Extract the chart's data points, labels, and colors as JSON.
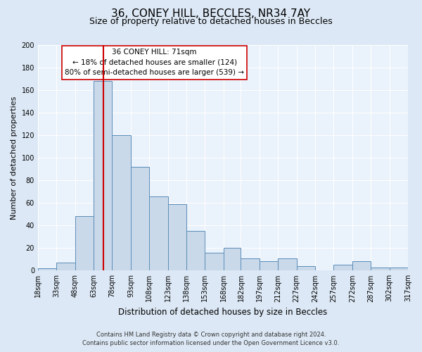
{
  "title_line1": "36, CONEY HILL, BECCLES, NR34 7AY",
  "title_line2": "Size of property relative to detached houses in Beccles",
  "xlabel": "Distribution of detached houses by size in Beccles",
  "ylabel": "Number of detached properties",
  "bin_edges": [
    18,
    33,
    48,
    63,
    78,
    93,
    108,
    123,
    138,
    153,
    168,
    182,
    197,
    212,
    227,
    242,
    257,
    272,
    287,
    302,
    317
  ],
  "bar_heights": [
    2,
    7,
    48,
    168,
    120,
    92,
    66,
    59,
    35,
    16,
    20,
    11,
    8,
    11,
    4,
    0,
    5,
    8,
    3,
    3
  ],
  "bar_color": "#c9d9ea",
  "bar_edge_color": "#5b8db8",
  "vline_x": 71,
  "vline_color": "#cc0000",
  "annotation_line1": "36 CONEY HILL: 71sqm",
  "annotation_line2": "← 18% of detached houses are smaller (124)",
  "annotation_line3": "80% of semi-detached houses are larger (539) →",
  "annotation_box_color": "#ffffff",
  "annotation_box_edge": "#cc0000",
  "ylim": [
    0,
    200
  ],
  "yticks": [
    0,
    20,
    40,
    60,
    80,
    100,
    120,
    140,
    160,
    180,
    200
  ],
  "tick_labels": [
    "18sqm",
    "33sqm",
    "48sqm",
    "63sqm",
    "78sqm",
    "93sqm",
    "108sqm",
    "123sqm",
    "138sqm",
    "153sqm",
    "168sqm",
    "182sqm",
    "197sqm",
    "212sqm",
    "227sqm",
    "242sqm",
    "257sqm",
    "272sqm",
    "287sqm",
    "302sqm",
    "317sqm"
  ],
  "footer_line1": "Contains HM Land Registry data © Crown copyright and database right 2024.",
  "footer_line2": "Contains public sector information licensed under the Open Government Licence v3.0.",
  "bg_color": "#dce8f5",
  "plot_bg_color": "#eaf2fb",
  "grid_color": "#ffffff",
  "title1_fontsize": 11,
  "title2_fontsize": 9,
  "ylabel_fontsize": 8,
  "xlabel_fontsize": 8.5,
  "tick_fontsize": 7,
  "annot_fontsize": 7.5,
  "footer_fontsize": 6
}
